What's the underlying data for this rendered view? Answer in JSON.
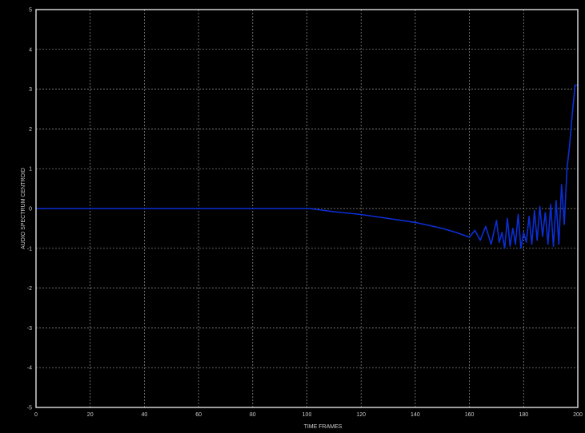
{
  "chart_data": {
    "type": "line",
    "title": "",
    "xlabel": "TIME FRAMES",
    "ylabel": "AUDIO SPECTRUM CENTROID",
    "xlim": [
      0,
      200
    ],
    "ylim": [
      -5,
      5
    ],
    "xticks": [
      0,
      20,
      40,
      60,
      80,
      100,
      120,
      140,
      160,
      180,
      200
    ],
    "yticks": [
      5,
      4,
      3,
      2,
      1,
      0,
      -1,
      -2,
      -3,
      -4,
      -5
    ],
    "grid": true,
    "colors": {
      "background": "#000000",
      "line": "#0b2fd6",
      "axes": "#e0e0e0",
      "grid": "#9a9a9a",
      "text": "#cfcfcf"
    },
    "series": [
      {
        "x": [
          0,
          10,
          20,
          30,
          40,
          50,
          60,
          70,
          80,
          90,
          100,
          101,
          110,
          120,
          130,
          140,
          150,
          155,
          160,
          162,
          164,
          166,
          168,
          170,
          171,
          172,
          173,
          174,
          175,
          176,
          177,
          178,
          179,
          180,
          181,
          182,
          183,
          184,
          185,
          186,
          187,
          188,
          189,
          190,
          191,
          192,
          193,
          194,
          195,
          196,
          197,
          198,
          199,
          200
        ],
        "y": [
          0,
          0,
          0,
          0,
          0,
          0,
          0,
          0,
          0,
          0,
          0,
          0,
          -0.08,
          -0.15,
          -0.25,
          -0.35,
          -0.5,
          -0.6,
          -0.72,
          -0.55,
          -0.8,
          -0.45,
          -0.9,
          -0.3,
          -0.85,
          -0.6,
          -1.0,
          -0.25,
          -0.95,
          -0.5,
          -0.9,
          -0.15,
          -1.0,
          -0.6,
          -0.85,
          -0.2,
          -0.9,
          -0.05,
          -0.8,
          0.05,
          -0.7,
          -0.1,
          -0.9,
          0.1,
          -0.95,
          0.2,
          -0.9,
          0.6,
          -0.4,
          1.0,
          1.6,
          2.4,
          3.1,
          3.1
        ]
      }
    ]
  }
}
